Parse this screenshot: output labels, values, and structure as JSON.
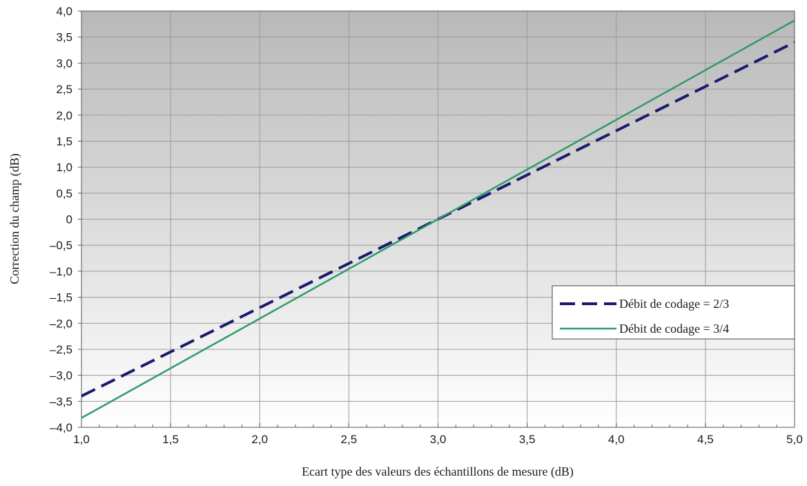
{
  "chart_data": {
    "type": "line",
    "xlabel": "Ecart type des valeurs des échantillons de mesure (dB)",
    "ylabel": "Correction du champ (dB)",
    "xlim": [
      1.0,
      5.0
    ],
    "ylim": [
      -4.0,
      4.0
    ],
    "x_ticks": [
      "1,0",
      "1,5",
      "2,0",
      "2,5",
      "3,0",
      "3,5",
      "4,0",
      "4,5",
      "5,0"
    ],
    "y_ticks": [
      "4,0",
      "3,5",
      "3,0",
      "2,5",
      "2,0",
      "1,5",
      "1,0",
      "0,5",
      "0",
      "–0,5",
      "–1,0",
      "–1,5",
      "–2,0",
      "–2,5",
      "–3,0",
      "–3,5",
      "–4,0"
    ],
    "grid": true,
    "legend_position": "lower-right",
    "series": [
      {
        "name": "Débit de codage = 2/3",
        "style": "dashed",
        "color": "#1a1a6e",
        "x": [
          1.0,
          5.0
        ],
        "y": [
          -3.4,
          3.4
        ]
      },
      {
        "name": "Débit de codage = 3/4",
        "style": "solid",
        "color": "#2e9a6a",
        "x": [
          1.0,
          5.0
        ],
        "y": [
          -3.82,
          3.82
        ]
      }
    ],
    "colors": {
      "plot_bg_top": "#b8b8b8",
      "plot_bg_bottom": "#ffffff",
      "grid": "#9a9a9a",
      "axis": "#555555"
    }
  }
}
